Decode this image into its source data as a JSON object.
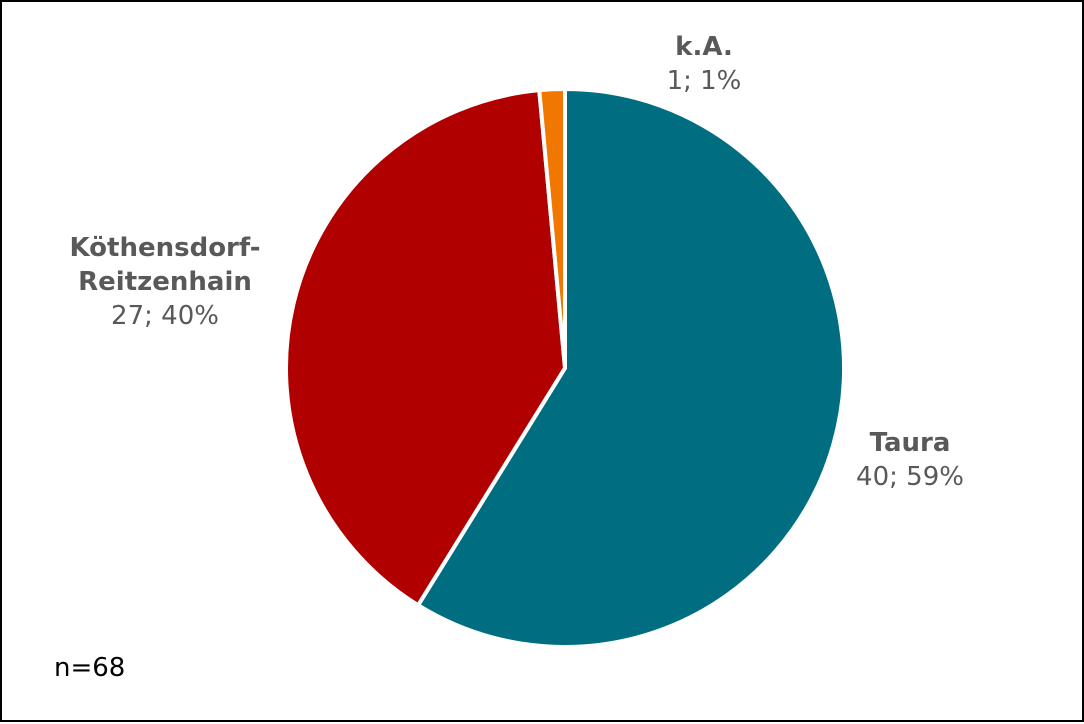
{
  "chart_data": {
    "type": "pie",
    "start_angle_deg": 0,
    "direction": "clockwise",
    "slices": [
      {
        "name": "Taura",
        "count": 40,
        "percent_label": "40; 59%",
        "color": "#006E80"
      },
      {
        "name": "Köthensdorf-Reitzenhain",
        "count": 27,
        "percent_label": "27; 40%",
        "color": "#B00000"
      },
      {
        "name": "k.A.",
        "count": 1,
        "percent_label": "1; 1%",
        "color": "#F07800"
      }
    ],
    "labels": {
      "taura_name": "Taura",
      "taura_value": "40; 59%",
      "koethensdorf_name_line1": "Köthensdorf-",
      "koethensdorf_name_line2": "Reitzenhain",
      "koethensdorf_value": "27; 40%",
      "ka_name": "k.A.",
      "ka_value": "1; 1%"
    },
    "note": "n=68"
  }
}
